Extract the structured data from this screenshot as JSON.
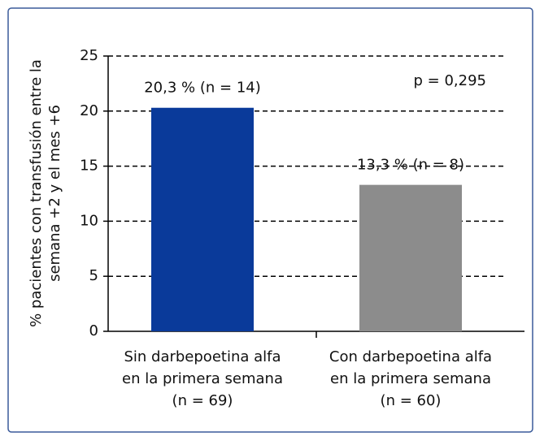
{
  "chart_data": {
    "type": "bar",
    "y_label": [
      "% pacientes con transfusión entre la",
      "semana +2 y el mes +6"
    ],
    "categories": [
      [
        "Sin darbepoetina alfa",
        "en la primera semana",
        "(n = 69)"
      ],
      [
        "Con darbepoetina alfa",
        "en la primera semana",
        "(n = 60)"
      ]
    ],
    "values": [
      20.3,
      13.3
    ],
    "value_labels": [
      "20,3 % (n = 14)",
      "13,3 % (n = 8)"
    ],
    "colors": [
      "#0a3a9a",
      "#8c8c8c"
    ],
    "annotation": "p = 0,295",
    "ylim": [
      0,
      25
    ],
    "yticks": [
      0,
      5,
      10,
      15,
      20,
      25
    ],
    "grid": true
  }
}
